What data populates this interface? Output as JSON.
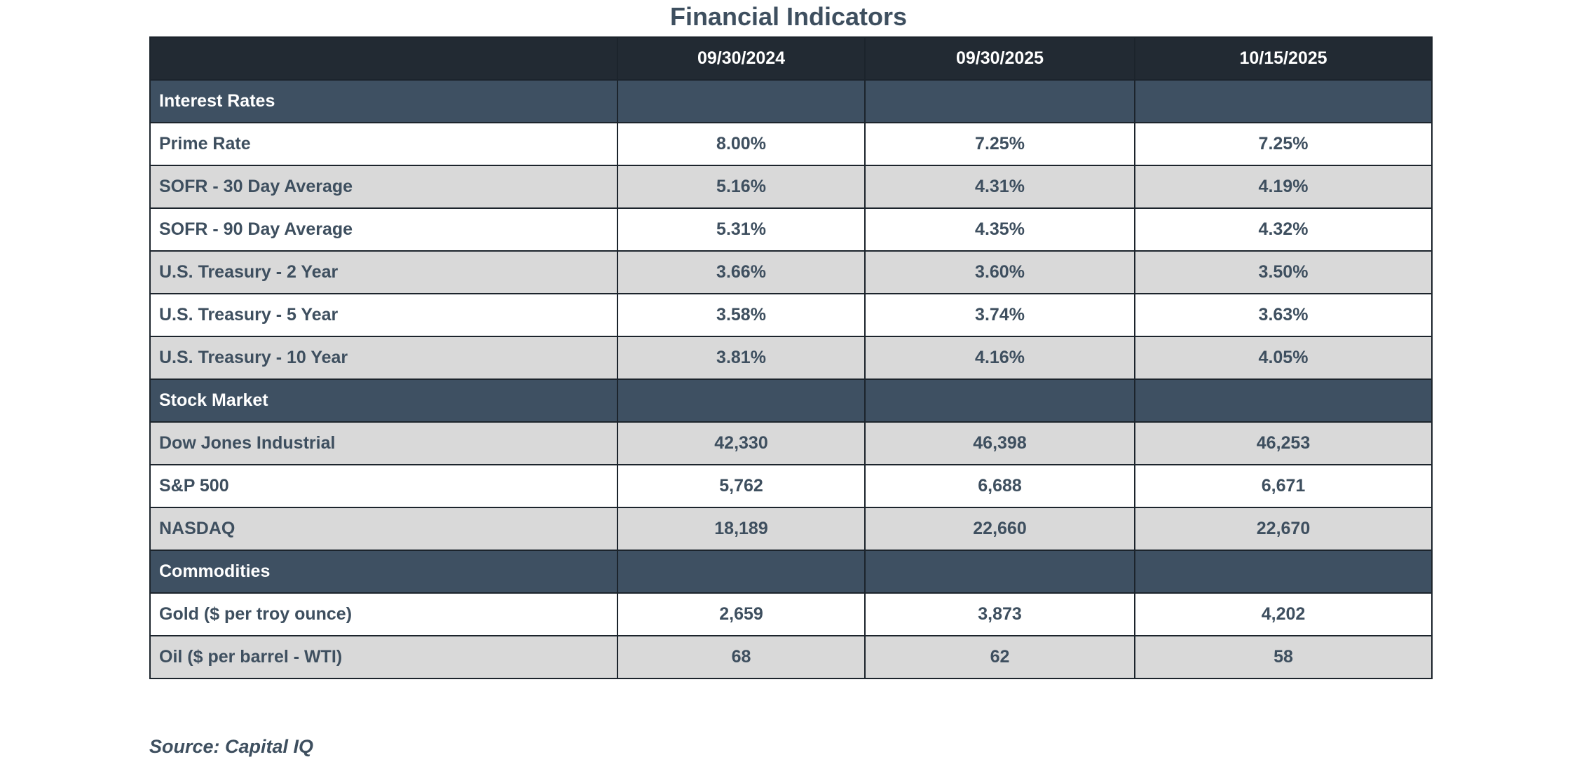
{
  "title": "Financial Indicators",
  "headers": [
    "",
    "09/30/2024",
    "09/30/2025",
    "10/15/2025"
  ],
  "sections": [
    {
      "name": "Interest Rates",
      "rows": [
        {
          "label": "Prime Rate",
          "values": [
            "8.00%",
            "7.25%",
            "7.25%"
          ]
        },
        {
          "label": "SOFR - 30 Day Average",
          "values": [
            "5.16%",
            "4.31%",
            "4.19%"
          ]
        },
        {
          "label": "SOFR - 90 Day Average",
          "values": [
            "5.31%",
            "4.35%",
            "4.32%"
          ]
        },
        {
          "label": "U.S. Treasury - 2 Year",
          "values": [
            "3.66%",
            "3.60%",
            "3.50%"
          ]
        },
        {
          "label": "U.S. Treasury - 5 Year",
          "values": [
            "3.58%",
            "3.74%",
            "3.63%"
          ]
        },
        {
          "label": "U.S. Treasury - 10 Year",
          "values": [
            "3.81%",
            "4.16%",
            "4.05%"
          ]
        }
      ]
    },
    {
      "name": "Stock Market",
      "rows": [
        {
          "label": "Dow Jones Industrial",
          "values": [
            "42,330",
            "46,398",
            "46,253"
          ]
        },
        {
          "label": "S&P 500",
          "values": [
            "5,762",
            "6,688",
            "6,671"
          ]
        },
        {
          "label": "NASDAQ",
          "values": [
            "18,189",
            "22,660",
            "22,670"
          ]
        }
      ]
    },
    {
      "name": "Commodities",
      "rows": [
        {
          "label": "Gold ($ per troy ounce)",
          "values": [
            "2,659",
            "3,873",
            "4,202"
          ]
        },
        {
          "label": "Oil ($ per barrel - WTI)",
          "values": [
            "68",
            "62",
            "58"
          ]
        }
      ]
    }
  ],
  "source": "Source: Capital IQ",
  "colors": {
    "header_bg": "#222a33",
    "section_bg": "#3e5062",
    "row_alt_bg": "#d9d9d9",
    "text": "#3e4f5f"
  }
}
